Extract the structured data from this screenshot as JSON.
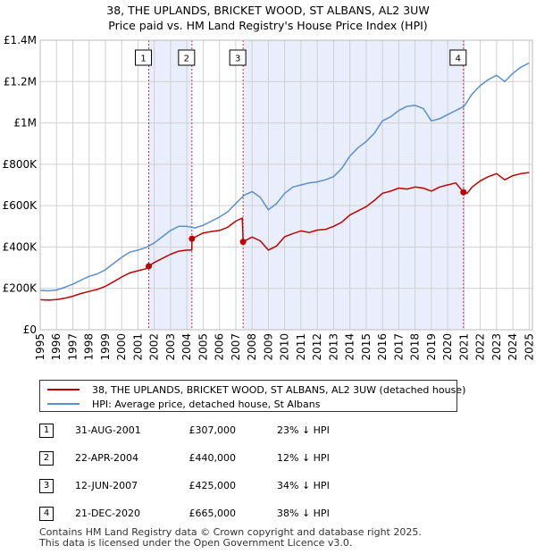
{
  "title": "38, THE UPLANDS, BRICKET WOOD, ST ALBANS, AL2 3UW",
  "subtitle": "Price paid vs. HM Land Registry's House Price Index (HPI)",
  "colors": {
    "property": "#c00000",
    "hpi": "#5b8fce",
    "shade": "#e8eefb",
    "grid": "#d0d0d0",
    "vline": "#cc3333"
  },
  "legend": {
    "property_label": "38, THE UPLANDS, BRICKET WOOD, ST ALBANS, AL2 3UW (detached house)",
    "hpi_label": "HPI: Average price, detached house, St Albans"
  },
  "sales": [
    {
      "num": "1",
      "date": "31-AUG-2001",
      "price": "£307,000",
      "hpi": "23% ↓ HPI"
    },
    {
      "num": "2",
      "date": "22-APR-2004",
      "price": "£440,000",
      "hpi": "12% ↓ HPI"
    },
    {
      "num": "3",
      "date": "12-JUN-2007",
      "price": "£425,000",
      "hpi": "34% ↓ HPI"
    },
    {
      "num": "4",
      "date": "21-DEC-2020",
      "price": "£665,000",
      "hpi": "38% ↓ HPI"
    }
  ],
  "footer": {
    "line1": "Contains HM Land Registry data © Crown copyright and database right 2025.",
    "line2": "This data is licensed under the Open Government Licence v3.0."
  },
  "chart_data": {
    "type": "line",
    "title": "38, THE UPLANDS, BRICKET WOOD, ST ALBANS, AL2 3UW",
    "subtitle": "Price paid vs. HM Land Registry's House Price Index (HPI)",
    "xlabel": "",
    "ylabel": "",
    "xlim": [
      1995,
      2025.2
    ],
    "ylim": [
      0,
      1400000
    ],
    "grid": true,
    "legend_position": "below chart",
    "y_ticks": [
      {
        "value": 0,
        "label": "£0"
      },
      {
        "value": 200000,
        "label": "£200K"
      },
      {
        "value": 400000,
        "label": "£400K"
      },
      {
        "value": 600000,
        "label": "£600K"
      },
      {
        "value": 800000,
        "label": "£800K"
      },
      {
        "value": 1000000,
        "label": "£1M"
      },
      {
        "value": 1200000,
        "label": "£1.2M"
      },
      {
        "value": 1400000,
        "label": "£1.4M"
      }
    ],
    "x_ticks": [
      "1995",
      "1996",
      "1997",
      "1998",
      "1999",
      "2000",
      "2001",
      "2002",
      "2003",
      "2004",
      "2005",
      "2006",
      "2007",
      "2008",
      "2009",
      "2010",
      "2011",
      "2012",
      "2013",
      "2014",
      "2015",
      "2016",
      "2017",
      "2018",
      "2019",
      "2020",
      "2021",
      "2022",
      "2023",
      "2024",
      "2025"
    ],
    "shaded_periods": [
      [
        2001.66,
        2004.31
      ],
      [
        2007.45,
        2020.97
      ]
    ],
    "sale_markers": [
      {
        "label": "1",
        "x": 2001.66,
        "y": 307000
      },
      {
        "label": "2",
        "x": 2004.31,
        "y": 440000
      },
      {
        "label": "3",
        "x": 2007.45,
        "y": 425000
      },
      {
        "label": "4",
        "x": 2020.97,
        "y": 665000
      }
    ],
    "series": [
      {
        "name": "HPI: Average price, detached house, St Albans",
        "color": "#5b8fce",
        "x": [
          1995,
          1995.5,
          1996,
          1996.5,
          1997,
          1997.5,
          1998,
          1998.5,
          1999,
          1999.5,
          2000,
          2000.5,
          2001,
          2001.5,
          2002,
          2002.5,
          2003,
          2003.5,
          2004,
          2004.5,
          2005,
          2005.5,
          2006,
          2006.5,
          2007,
          2007.5,
          2008,
          2008.5,
          2009,
          2009.5,
          2010,
          2010.5,
          2011,
          2011.5,
          2012,
          2012.5,
          2013,
          2013.5,
          2014,
          2014.5,
          2015,
          2015.5,
          2016,
          2016.5,
          2017,
          2017.5,
          2018,
          2018.5,
          2019,
          2019.5,
          2020,
          2020.5,
          2021,
          2021.5,
          2022,
          2022.5,
          2023,
          2023.5,
          2024,
          2024.5,
          2025
        ],
        "values": [
          190000,
          188000,
          192000,
          205000,
          220000,
          240000,
          258000,
          270000,
          290000,
          320000,
          350000,
          375000,
          385000,
          398000,
          420000,
          450000,
          480000,
          500000,
          500000,
          492000,
          505000,
          525000,
          545000,
          570000,
          610000,
          650000,
          668000,
          640000,
          580000,
          610000,
          660000,
          690000,
          700000,
          710000,
          715000,
          725000,
          740000,
          780000,
          840000,
          880000,
          910000,
          950000,
          1010000,
          1030000,
          1060000,
          1080000,
          1085000,
          1070000,
          1010000,
          1020000,
          1040000,
          1060000,
          1080000,
          1140000,
          1180000,
          1210000,
          1230000,
          1200000,
          1240000,
          1270000,
          1290000
        ]
      },
      {
        "name": "38, THE UPLANDS, BRICKET WOOD, ST ALBANS, AL2 3UW (detached house)",
        "color": "#c00000",
        "x": [
          1995,
          1995.5,
          1996,
          1996.5,
          1997,
          1997.5,
          1998,
          1998.5,
          1999,
          1999.5,
          2000,
          2000.5,
          2001,
          2001.5,
          2001.66,
          2002,
          2002.5,
          2003,
          2003.5,
          2004,
          2004.3,
          2004.31,
          2004.8,
          2005,
          2005.5,
          2006,
          2006.5,
          2007,
          2007.4,
          2007.45,
          2007.8,
          2008,
          2008.5,
          2009,
          2009.5,
          2010,
          2010.5,
          2011,
          2011.5,
          2012,
          2012.5,
          2013,
          2013.5,
          2014,
          2014.5,
          2015,
          2015.5,
          2016,
          2016.5,
          2017,
          2017.5,
          2018,
          2018.5,
          2019,
          2019.5,
          2020,
          2020.5,
          2020.97,
          2021.2,
          2021.5,
          2022,
          2022.5,
          2023,
          2023.5,
          2024,
          2024.5,
          2025
        ],
        "values": [
          145000,
          143000,
          146000,
          152000,
          162000,
          175000,
          185000,
          195000,
          210000,
          232000,
          255000,
          275000,
          285000,
          295000,
          307000,
          325000,
          345000,
          365000,
          380000,
          385000,
          385000,
          440000,
          460000,
          468000,
          475000,
          480000,
          495000,
          525000,
          540000,
          425000,
          440000,
          448000,
          430000,
          385000,
          405000,
          450000,
          465000,
          478000,
          470000,
          482000,
          485000,
          500000,
          520000,
          555000,
          575000,
          595000,
          625000,
          660000,
          670000,
          685000,
          680000,
          690000,
          685000,
          670000,
          690000,
          700000,
          710000,
          665000,
          660000,
          690000,
          720000,
          740000,
          755000,
          725000,
          745000,
          755000,
          760000
        ]
      }
    ]
  }
}
